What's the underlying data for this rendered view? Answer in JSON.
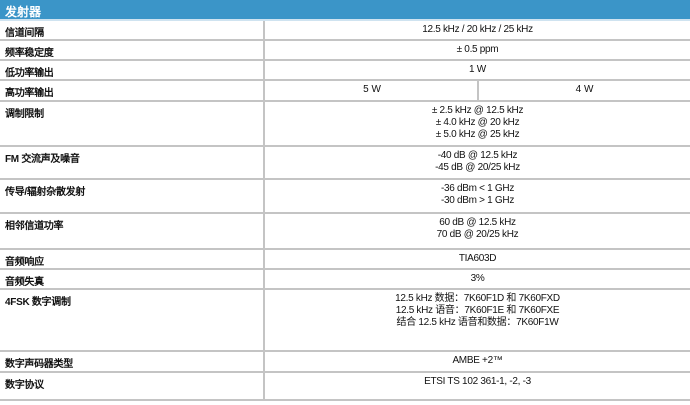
{
  "section_title": "发射器",
  "rows": [
    {
      "label": "信道间隔",
      "values": [
        "12.5 kHz / 20 kHz / 25 kHz"
      ]
    },
    {
      "label": "频率稳定度",
      "values": [
        "± 0.5 ppm"
      ]
    },
    {
      "label": "低功率输出",
      "values": [
        "1 W"
      ]
    },
    {
      "label": "高功率输出",
      "split": [
        "5 W",
        "4 W"
      ]
    },
    {
      "label": "调制限制",
      "values": [
        "± 2.5 kHz @ 12.5 kHz",
        "± 4.0 kHz @ 20 kHz",
        "± 5.0 kHz @ 25 kHz"
      ]
    },
    {
      "label": "FM 交流声及噪音",
      "values": [
        "-40 dB @ 12.5 kHz",
        "-45 dB @ 20/25 kHz"
      ]
    },
    {
      "label": "传导/辐射杂散发射",
      "values": [
        "-36 dBm < 1 GHz",
        "-30 dBm > 1 GHz"
      ]
    },
    {
      "label": "相邻信道功率",
      "values": [
        "60 dB @ 12.5 kHz",
        "70 dB @ 20/25 kHz"
      ]
    },
    {
      "label": "音频响应",
      "values": [
        "TIA603D"
      ]
    },
    {
      "label": "音频失真",
      "values": [
        "3%"
      ]
    },
    {
      "label": "4FSK 数字调制",
      "values": [
        "12.5 kHz 数据：7K60F1D 和 7K60FXD",
        "12.5 kHz 语音：7K60F1E 和 7K60FXE",
        "结合 12.5 kHz 语音和数据：7K60F1W"
      ]
    },
    {
      "label": "数字声码器类型",
      "values": [
        "AMBE +2™"
      ]
    },
    {
      "label": "数字协议",
      "values": [
        "ETSI TS 102 361-1, -2, -3"
      ]
    }
  ],
  "colors": {
    "header": "#3b95c8",
    "divider": "#c4c4c4"
  }
}
